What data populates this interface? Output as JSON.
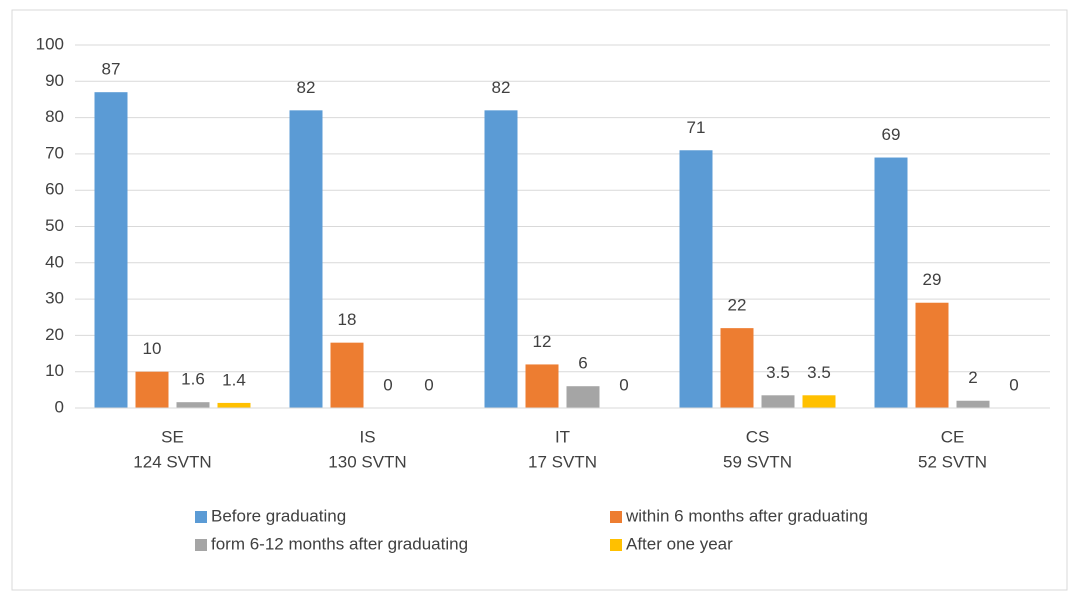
{
  "chart_data": {
    "type": "bar",
    "categories": [
      [
        "SE",
        "124 SVTN"
      ],
      [
        "IS",
        "130 SVTN"
      ],
      [
        "IT",
        "17 SVTN"
      ],
      [
        "CS",
        "59 SVTN"
      ],
      [
        "CE",
        "52 SVTN"
      ]
    ],
    "series": [
      {
        "name": "Before graduating",
        "color": "#5b9bd5",
        "values": [
          87,
          82,
          82,
          71,
          69
        ]
      },
      {
        "name": "within 6 months after graduating",
        "color": "#ed7d31",
        "values": [
          10,
          18,
          12,
          22,
          29
        ]
      },
      {
        "name": "form 6-12 months after graduating",
        "color": "#a5a5a5",
        "values": [
          1.6,
          0,
          6,
          3.5,
          2
        ]
      },
      {
        "name": "After one year",
        "color": "#ffc000",
        "values": [
          1.4,
          0,
          0,
          3.5,
          0
        ]
      }
    ],
    "ylim": [
      0,
      100
    ],
    "yticks": [
      0,
      10,
      20,
      30,
      40,
      50,
      60,
      70,
      80,
      90,
      100
    ],
    "grid": true,
    "legend": "bottom"
  }
}
